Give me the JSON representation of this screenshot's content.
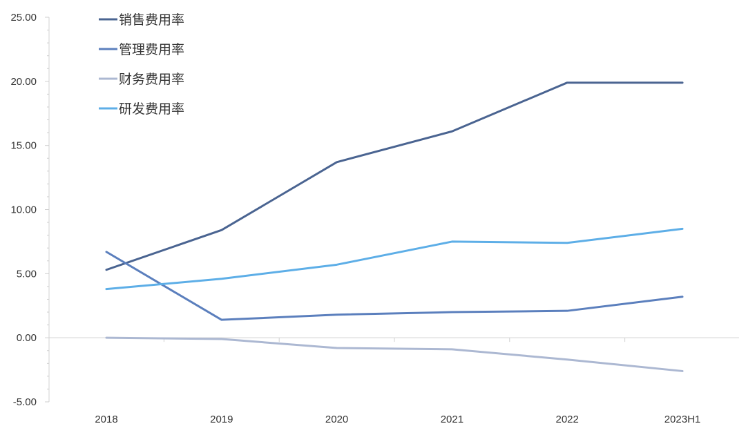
{
  "chart_data": {
    "type": "line",
    "categories": [
      "2018",
      "2019",
      "2020",
      "2021",
      "2022",
      "2023H1"
    ],
    "ylim": [
      -5,
      25
    ],
    "yticks": [
      "25.00",
      "20.00",
      "15.00",
      "10.00",
      "5.00",
      "0.00",
      "-5.00"
    ],
    "grid": false,
    "legend_position": "top-left",
    "series": [
      {
        "name": "销售费用率",
        "color": "#4a6491",
        "values": [
          5.3,
          8.4,
          13.7,
          16.1,
          19.9,
          19.9
        ]
      },
      {
        "name": "管理费用率",
        "color": "#5b7fbd",
        "values": [
          6.7,
          1.4,
          1.8,
          2.0,
          2.1,
          3.2
        ]
      },
      {
        "name": "财务费用率",
        "color": "#acb8d2",
        "values": [
          0.0,
          -0.1,
          -0.8,
          -0.9,
          -1.7,
          -2.6
        ]
      },
      {
        "name": "研发费用率",
        "color": "#5daee7",
        "values": [
          3.8,
          4.6,
          5.7,
          7.5,
          7.4,
          8.5
        ]
      }
    ]
  }
}
